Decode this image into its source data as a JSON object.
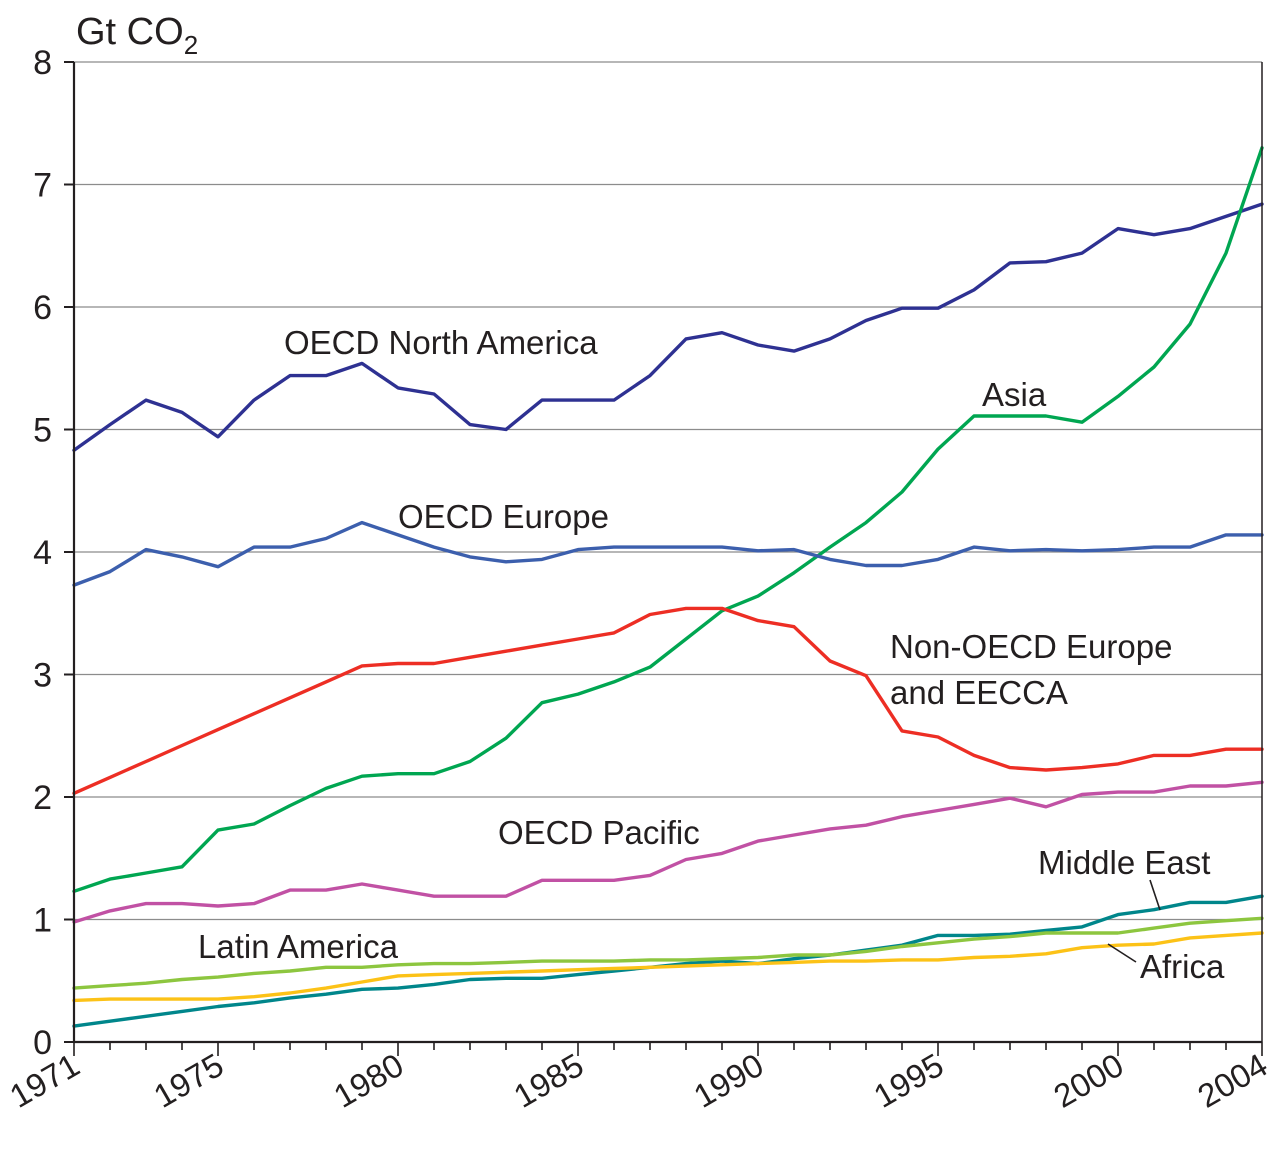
{
  "chart_data": {
    "type": "line",
    "ylabel": "Gt CO",
    "ylabel_subscript": "2",
    "xlabel": "",
    "title": "",
    "ylim": [
      0,
      8
    ],
    "xlim": [
      1971,
      2004
    ],
    "y_ticks": [
      "0",
      "1",
      "2",
      "3",
      "4",
      "5",
      "6",
      "7",
      "8"
    ],
    "x_tick_labels": [
      "1971",
      "1975",
      "1980",
      "1985",
      "1990",
      "1995",
      "2000",
      "2004"
    ],
    "grid": "horizontal",
    "legend": "inline labels",
    "x": [
      1971,
      1972,
      1973,
      1974,
      1975,
      1976,
      1977,
      1978,
      1979,
      1980,
      1981,
      1982,
      1983,
      1984,
      1985,
      1986,
      1987,
      1988,
      1989,
      1990,
      1991,
      1992,
      1993,
      1994,
      1995,
      1996,
      1997,
      1998,
      1999,
      2000,
      2001,
      2002,
      2003,
      2004
    ],
    "series": [
      {
        "name": "OECD North America",
        "color": "#2e3192",
        "values": [
          4.83,
          5.04,
          5.24,
          5.14,
          4.94,
          5.24,
          5.44,
          5.44,
          5.54,
          5.34,
          5.29,
          5.04,
          5.0,
          5.24,
          5.24,
          5.24,
          5.44,
          5.74,
          5.79,
          5.69,
          5.64,
          5.74,
          5.89,
          5.99,
          5.99,
          6.14,
          6.36,
          6.37,
          6.44,
          6.64,
          6.59,
          6.64,
          6.74,
          6.84
        ]
      },
      {
        "name": "Asia",
        "color": "#00a651",
        "values": [
          1.23,
          1.33,
          1.38,
          1.43,
          1.73,
          1.78,
          1.93,
          2.07,
          2.17,
          2.19,
          2.19,
          2.29,
          2.48,
          2.77,
          2.84,
          2.94,
          3.06,
          3.29,
          3.52,
          3.64,
          3.83,
          4.04,
          4.24,
          4.49,
          4.84,
          5.11,
          5.11,
          5.11,
          5.06,
          5.27,
          5.51,
          5.86,
          6.44,
          7.3
        ]
      },
      {
        "name": "OECD Europe",
        "color": "#3c5fad",
        "values": [
          3.73,
          3.84,
          4.02,
          3.96,
          3.88,
          4.04,
          4.04,
          4.11,
          4.24,
          4.14,
          4.04,
          3.96,
          3.92,
          3.94,
          4.02,
          4.04,
          4.04,
          4.04,
          4.04,
          4.01,
          4.02,
          3.94,
          3.89,
          3.89,
          3.94,
          4.04,
          4.01,
          4.02,
          4.01,
          4.02,
          4.04,
          4.04,
          4.14,
          4.14
        ]
      },
      {
        "name": "Non-OECD Europe and EECCA",
        "label_lines": [
          "Non-OECD Europe",
          "and EECCA"
        ],
        "color": "#ed2e24",
        "values": [
          2.03,
          2.16,
          2.29,
          2.42,
          2.55,
          2.68,
          2.81,
          2.94,
          3.07,
          3.09,
          3.09,
          3.14,
          3.19,
          3.24,
          3.29,
          3.34,
          3.49,
          3.54,
          3.54,
          3.44,
          3.39,
          3.11,
          2.99,
          2.54,
          2.49,
          2.34,
          2.24,
          2.22,
          2.24,
          2.27,
          2.34,
          2.34,
          2.39,
          2.39
        ]
      },
      {
        "name": "OECD Pacific",
        "color": "#c151a4",
        "values": [
          0.98,
          1.07,
          1.13,
          1.13,
          1.11,
          1.13,
          1.24,
          1.24,
          1.29,
          1.24,
          1.19,
          1.19,
          1.19,
          1.32,
          1.32,
          1.32,
          1.36,
          1.49,
          1.54,
          1.64,
          1.69,
          1.74,
          1.77,
          1.84,
          1.89,
          1.94,
          1.99,
          1.92,
          2.02,
          2.04,
          2.04,
          2.09,
          2.09,
          2.12
        ]
      },
      {
        "name": "Middle East",
        "color": "#00868b",
        "values": [
          0.13,
          0.17,
          0.21,
          0.25,
          0.29,
          0.32,
          0.36,
          0.39,
          0.43,
          0.44,
          0.47,
          0.51,
          0.52,
          0.52,
          0.55,
          0.58,
          0.61,
          0.64,
          0.66,
          0.64,
          0.68,
          0.71,
          0.75,
          0.79,
          0.87,
          0.87,
          0.88,
          0.91,
          0.94,
          1.04,
          1.08,
          1.14,
          1.14,
          1.19
        ]
      },
      {
        "name": "Latin America",
        "color": "#8dc63f",
        "values": [
          0.44,
          0.46,
          0.48,
          0.51,
          0.53,
          0.56,
          0.58,
          0.61,
          0.61,
          0.63,
          0.64,
          0.64,
          0.65,
          0.66,
          0.66,
          0.66,
          0.67,
          0.67,
          0.68,
          0.69,
          0.71,
          0.71,
          0.74,
          0.78,
          0.81,
          0.84,
          0.86,
          0.89,
          0.89,
          0.89,
          0.93,
          0.97,
          0.99,
          1.01
        ]
      },
      {
        "name": "Africa",
        "color": "#fcc217",
        "values": [
          0.34,
          0.35,
          0.35,
          0.35,
          0.35,
          0.37,
          0.4,
          0.44,
          0.49,
          0.54,
          0.55,
          0.56,
          0.57,
          0.58,
          0.59,
          0.6,
          0.61,
          0.62,
          0.63,
          0.64,
          0.65,
          0.66,
          0.66,
          0.67,
          0.67,
          0.69,
          0.7,
          0.72,
          0.77,
          0.79,
          0.8,
          0.85,
          0.87,
          0.89
        ]
      }
    ]
  }
}
